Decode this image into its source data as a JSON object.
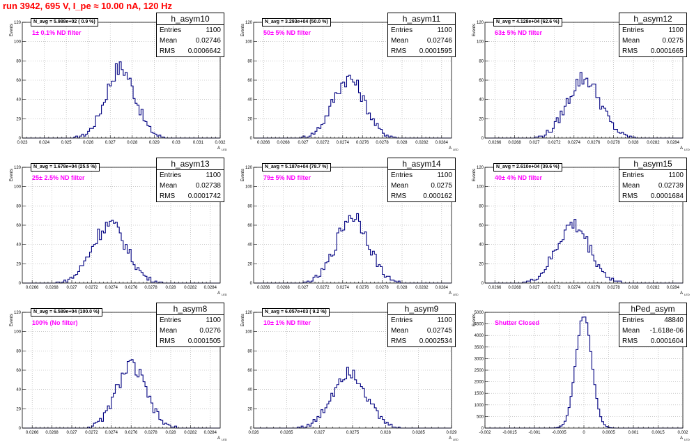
{
  "run_title": "run 3942,   695 V, I_pe ≈ 10.00 nA, 120 Hz",
  "chart_data": [
    {
      "type": "bar",
      "name": "h_asym10",
      "n_avg": "N_avg = 5.988e+02 ( 0.9 %)",
      "filter": "1± 0.1% ND filter",
      "stats": {
        "Entries": "1100",
        "Mean": "0.02746",
        "RMS": "0.0006642"
      },
      "xlim": [
        0.023,
        0.032
      ],
      "xticks": [
        "0.023",
        "0.024",
        "0.025",
        "0.026",
        "0.027",
        "0.028",
        "0.029",
        "0.03",
        "0.031",
        "0.032"
      ],
      "ylim": [
        0,
        120
      ],
      "yticks": [
        "0",
        "20",
        "40",
        "60",
        "80",
        "100",
        "120"
      ],
      "ylabel": "Events",
      "xlabel": "A",
      "mean": 0.02746,
      "rms": 0.0006642,
      "peak": 73
    },
    {
      "type": "bar",
      "name": "h_asym11",
      "n_avg": "N_avg = 3.293e+04 (50.0 %)",
      "filter": "50± 5% ND filter",
      "stats": {
        "Entries": "1100",
        "Mean": "0.02746",
        "RMS": "0.0001595"
      },
      "xlim": [
        0.0265,
        0.0285
      ],
      "xticks": [
        "0.0266",
        "0.0268",
        "0.027",
        "0.0272",
        "0.0274",
        "0.0276",
        "0.0278",
        "0.028",
        "0.0282",
        "0.0284"
      ],
      "ylim": [
        0,
        120
      ],
      "yticks": [
        "0",
        "20",
        "40",
        "60",
        "80",
        "100",
        "120"
      ],
      "ylabel": "Events",
      "xlabel": "A",
      "mean": 0.02746,
      "rms": 0.0001595,
      "peak": 62
    },
    {
      "type": "bar",
      "name": "h_asym12",
      "n_avg": "N_avg = 4.128e+04 (62.6 %)",
      "filter": "63± 5% ND filter",
      "stats": {
        "Entries": "1100",
        "Mean": "0.0275",
        "RMS": "0.0001665"
      },
      "xlim": [
        0.0265,
        0.0285
      ],
      "xticks": [
        "0.0266",
        "0.0268",
        "0.027",
        "0.0272",
        "0.0274",
        "0.0276",
        "0.0278",
        "0.028",
        "0.0282",
        "0.0284"
      ],
      "ylim": [
        0,
        120
      ],
      "yticks": [
        "0",
        "20",
        "40",
        "60",
        "80",
        "100",
        "120"
      ],
      "ylabel": "Events",
      "xlabel": "A",
      "mean": 0.0275,
      "rms": 0.0001665,
      "peak": 62
    },
    {
      "type": "bar",
      "name": "h_asym13",
      "n_avg": "N_avg = 1.678e+04 (25.5 %)",
      "filter": "25± 2.5% ND filter",
      "stats": {
        "Entries": "1100",
        "Mean": "0.02738",
        "RMS": "0.0001742"
      },
      "xlim": [
        0.0265,
        0.0285
      ],
      "xticks": [
        "0.0266",
        "0.0268",
        "0.027",
        "0.0272",
        "0.0274",
        "0.0276",
        "0.0278",
        "0.028",
        "0.0282",
        "0.0284"
      ],
      "ylim": [
        0,
        120
      ],
      "yticks": [
        "0",
        "20",
        "40",
        "60",
        "80",
        "100",
        "120"
      ],
      "ylabel": "Events",
      "xlabel": "A",
      "mean": 0.02738,
      "rms": 0.0001742,
      "peak": 61
    },
    {
      "type": "bar",
      "name": "h_asym14",
      "n_avg": "N_avg = 5.187e+04 (78.7 %)",
      "filter": "79± 5% ND filter",
      "stats": {
        "Entries": "1100",
        "Mean": "0.0275",
        "RMS": "0.000162"
      },
      "xlim": [
        0.0265,
        0.0285
      ],
      "xticks": [
        "0.0266",
        "0.0268",
        "0.027",
        "0.0272",
        "0.0274",
        "0.0276",
        "0.0278",
        "0.028",
        "0.0282",
        "0.0284"
      ],
      "ylim": [
        0,
        120
      ],
      "yticks": [
        "0",
        "20",
        "40",
        "60",
        "80",
        "100",
        "120"
      ],
      "ylabel": "Events",
      "xlabel": "A",
      "mean": 0.0275,
      "rms": 0.000162,
      "peak": 70
    },
    {
      "type": "bar",
      "name": "h_asym15",
      "n_avg": "N_avg = 2.610e+04 (39.6 %)",
      "filter": "40± 4% ND filter",
      "stats": {
        "Entries": "1100",
        "Mean": "0.02739",
        "RMS": "0.0001684"
      },
      "xlim": [
        0.0265,
        0.0285
      ],
      "xticks": [
        "0.0266",
        "0.0268",
        "0.027",
        "0.0272",
        "0.0274",
        "0.0276",
        "0.0278",
        "0.028",
        "0.0282",
        "0.0284"
      ],
      "ylim": [
        0,
        120
      ],
      "yticks": [
        "0",
        "20",
        "40",
        "60",
        "80",
        "100",
        "120"
      ],
      "ylabel": "Events",
      "xlabel": "A",
      "mean": 0.02739,
      "rms": 0.0001684,
      "peak": 60
    },
    {
      "type": "bar",
      "name": "h_asym8",
      "n_avg": "N_avg = 6.589e+04 (100.0 %)",
      "filter": "100% (No filter)",
      "stats": {
        "Entries": "1100",
        "Mean": "0.0276",
        "RMS": "0.0001505"
      },
      "xlim": [
        0.0265,
        0.0285
      ],
      "xticks": [
        "0.0266",
        "0.0268",
        "0.027",
        "0.0272",
        "0.0274",
        "0.0276",
        "0.0278",
        "0.028",
        "0.0282",
        "0.0284"
      ],
      "ylim": [
        0,
        120
      ],
      "yticks": [
        "0",
        "20",
        "40",
        "60",
        "80",
        "100",
        "120"
      ],
      "ylabel": "Events",
      "xlabel": "A",
      "mean": 0.0276,
      "rms": 0.0001505,
      "peak": 64
    },
    {
      "type": "bar",
      "name": "h_asym9",
      "n_avg": "N_avg = 6.057e+03 ( 9.2 %)",
      "filter": "10± 1% ND filter",
      "stats": {
        "Entries": "1100",
        "Mean": "0.02745",
        "RMS": "0.0002534"
      },
      "xlim": [
        0.026,
        0.029
      ],
      "xticks": [
        "0.026",
        "0.0265",
        "0.027",
        "0.0275",
        "0.028",
        "0.0285",
        "0.029"
      ],
      "ylim": [
        0,
        120
      ],
      "yticks": [
        "0",
        "20",
        "40",
        "60",
        "80",
        "100",
        "120"
      ],
      "ylabel": "Events",
      "xlabel": "A",
      "mean": 0.02745,
      "rms": 0.0002534,
      "peak": 60
    },
    {
      "type": "bar",
      "name": "hPed_asym",
      "n_avg": "",
      "filter": "Shutter Closed",
      "stats": {
        "Entries": "48840",
        "Mean": "-1.618e-06",
        "RMS": "0.0001604"
      },
      "xlim": [
        -0.002,
        0.002
      ],
      "xticks": [
        "-0.002",
        "-0.0015",
        "-0.001",
        "-0.0005",
        "0",
        "0.0005",
        "0.001",
        "0.0015",
        "0.002"
      ],
      "ylim": [
        0,
        5000
      ],
      "yticks": [
        "0",
        "500",
        "1000",
        "1500",
        "2000",
        "2500",
        "3000",
        "3500",
        "4000",
        "4500",
        "5000"
      ],
      "ylabel": "Events",
      "xlabel": "A",
      "mean": -1.618e-06,
      "rms": 0.0001604,
      "peak": 4900
    }
  ]
}
